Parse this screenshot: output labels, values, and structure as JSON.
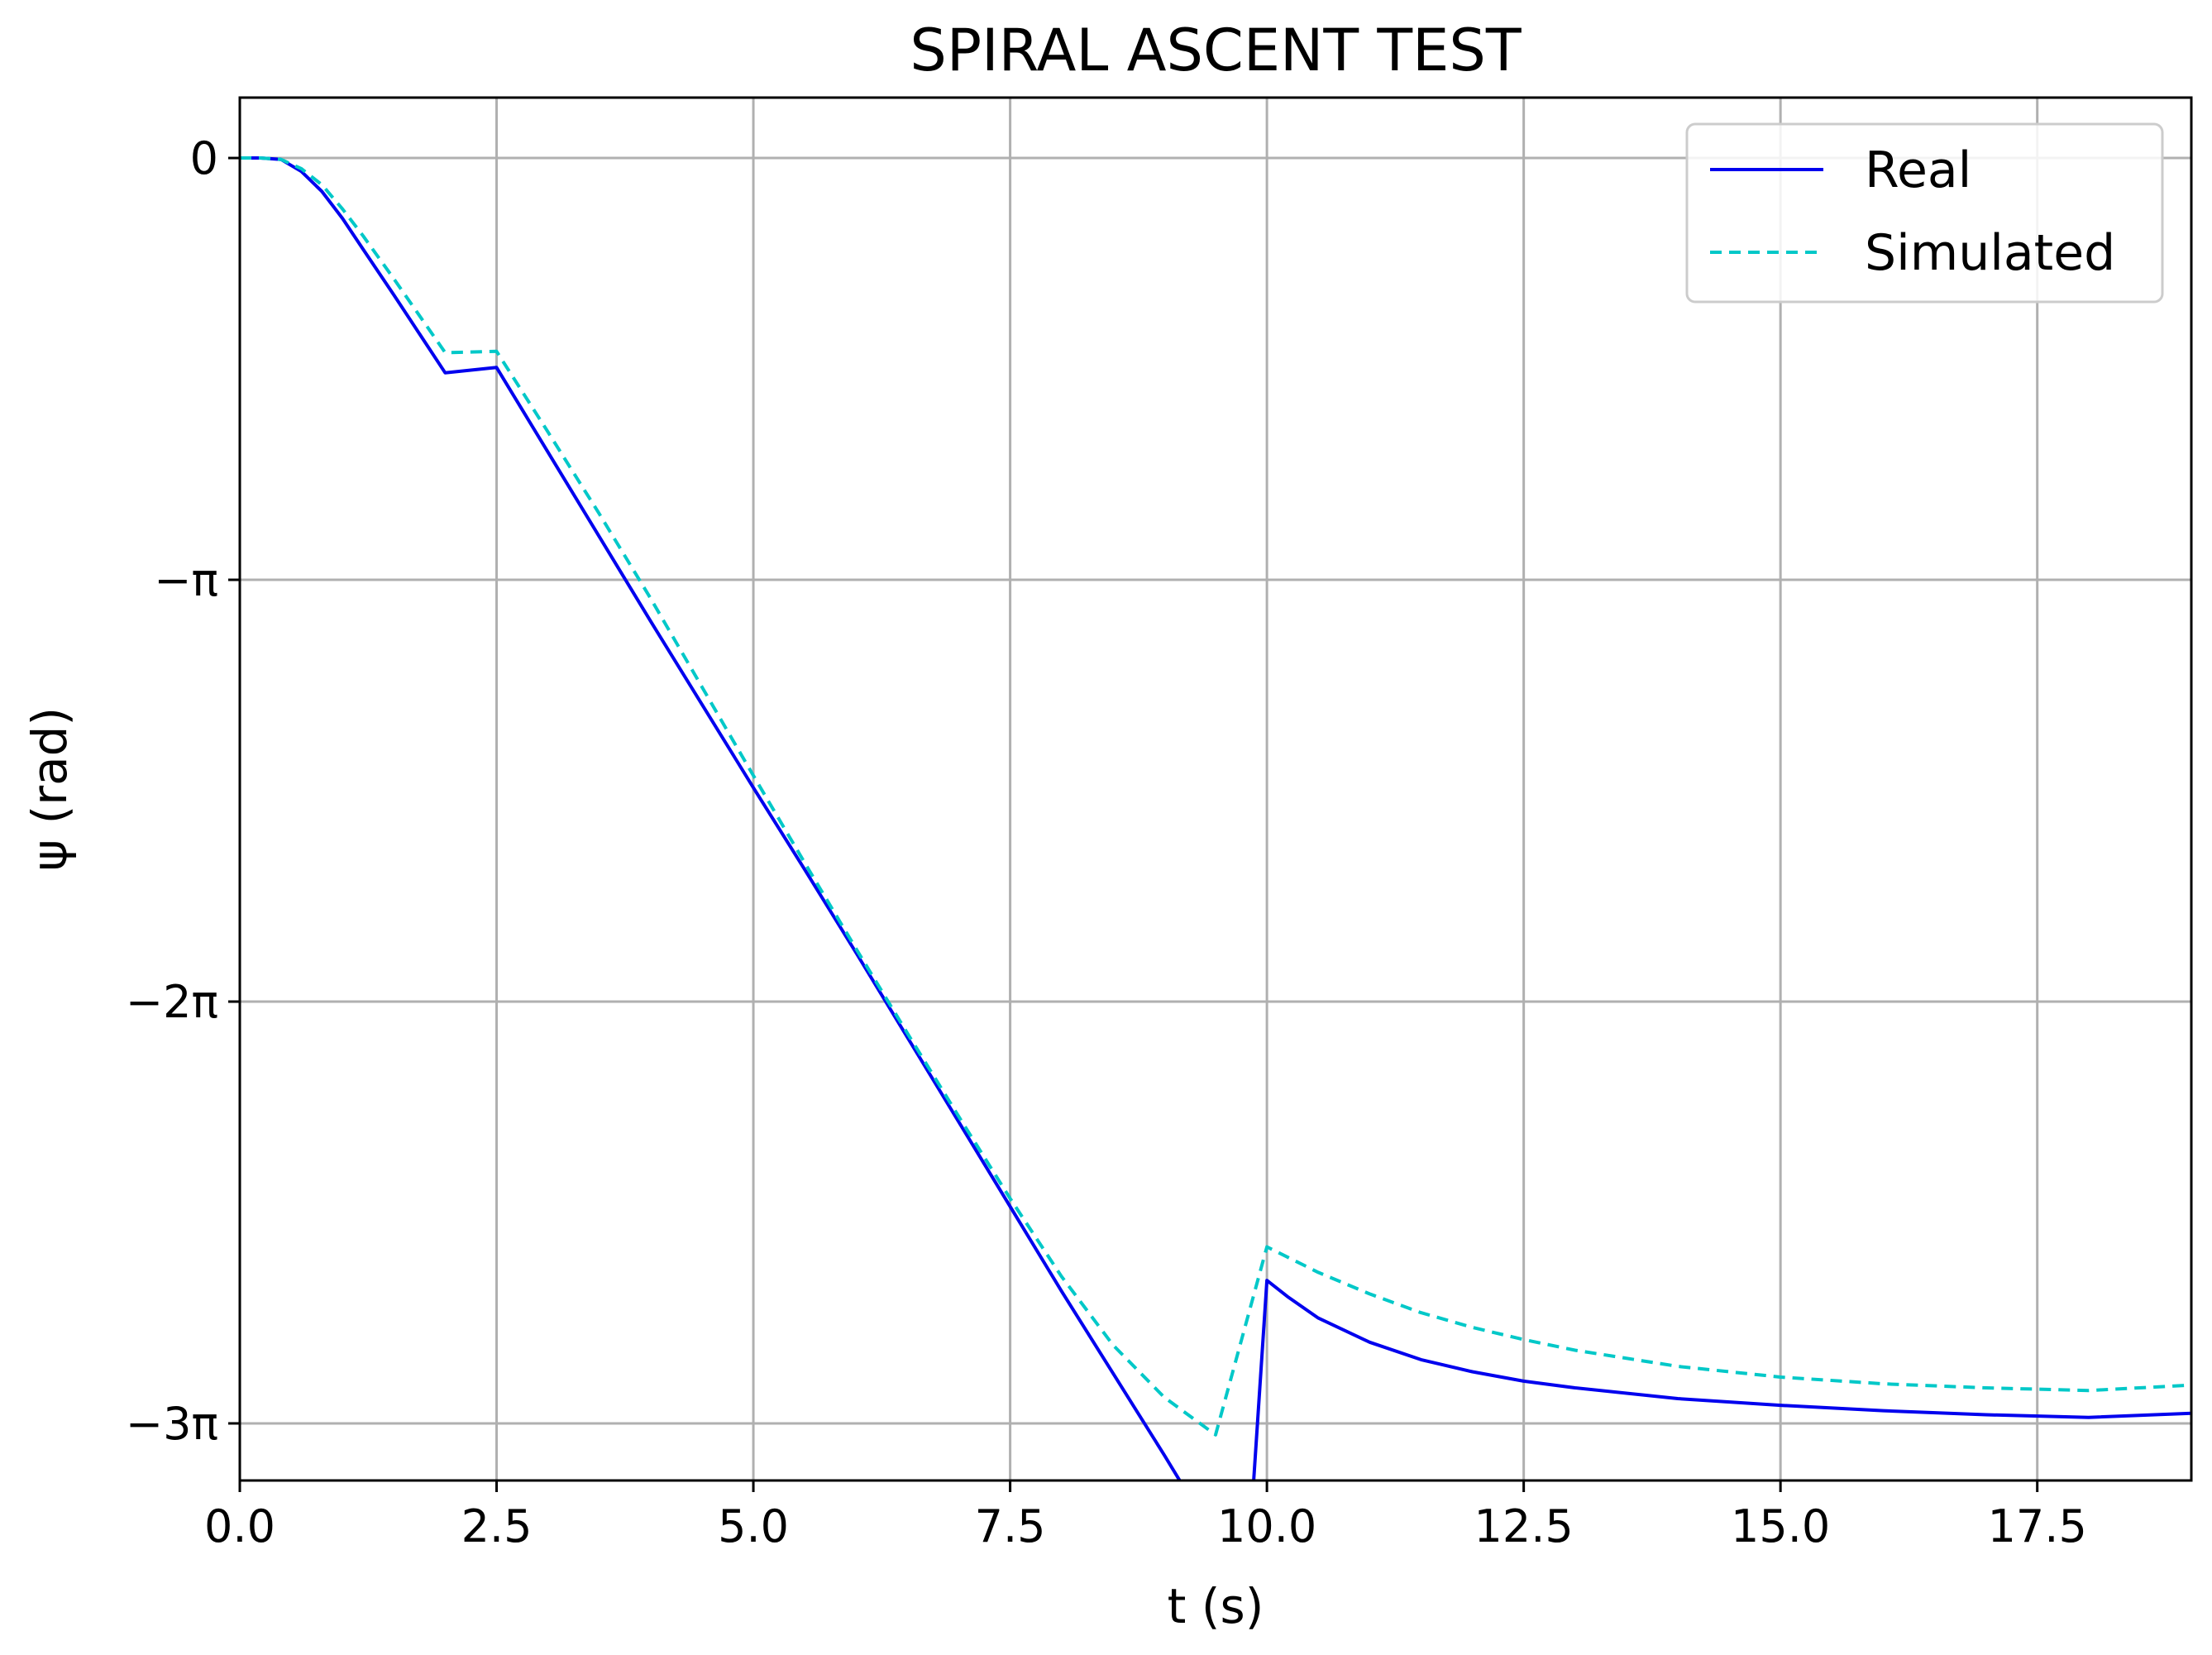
{
  "chart_data": {
    "type": "line",
    "title": "SPIRAL ASCENT TEST",
    "xlabel": "t (s)",
    "ylabel": "ψ (rad)",
    "xlim": [
      0,
      19
    ],
    "ylim": [
      -9.85,
      0.45
    ],
    "x_ticks": [
      0,
      2.5,
      5,
      7.5,
      10,
      12.5,
      15,
      17.5
    ],
    "x_tick_labels": [
      "0.0",
      "2.5",
      "5.0",
      "7.5",
      "10.0",
      "12.5",
      "15.0",
      "17.5"
    ],
    "y_ticks": [
      0,
      -3.14159,
      -6.28319,
      -9.42478
    ],
    "y_tick_labels": [
      "0",
      "−π",
      "−2π",
      "−3π"
    ],
    "grid": true,
    "legend_position": "top-right",
    "series": [
      {
        "name": "Real",
        "style": "solid",
        "color": "#0000ee",
        "x": [
          0,
          0.2,
          0.4,
          0.6,
          0.8,
          1.0,
          1.2,
          1.5,
          2.0,
          2.5,
          3.0,
          3.5,
          4.0,
          4.5,
          5.0,
          5.5,
          6.0,
          6.5,
          7.0,
          7.5,
          8.0,
          8.5,
          9.0,
          9.5,
          9.8,
          10.0,
          10.2,
          10.5,
          11.0,
          11.5,
          12.0,
          12.5,
          13.0,
          14.0,
          15.0,
          16.0,
          17.0,
          18.0,
          19.0
        ],
        "y": [
          0,
          0,
          -0.01,
          -0.1,
          -0.25,
          -0.45,
          -0.68,
          -1.02,
          -1.6,
          -1.56,
          -2.19,
          -2.82,
          -3.45,
          -4.07,
          -4.69,
          -5.3,
          -5.92,
          -6.55,
          -7.18,
          -7.81,
          -8.44,
          -9.05,
          -9.66,
          -10.29,
          -10.67,
          -8.36,
          -8.48,
          -8.64,
          -8.82,
          -8.95,
          -9.04,
          -9.11,
          -9.16,
          -9.24,
          -9.29,
          -9.33,
          -9.36,
          -9.38,
          -9.35
        ]
      },
      {
        "name": "Simulated",
        "style": "dashed",
        "color": "#00c8c8",
        "x": [
          0,
          0.2,
          0.4,
          0.6,
          0.8,
          1.0,
          1.2,
          1.5,
          2.0,
          2.5,
          3.0,
          3.5,
          4.0,
          4.5,
          5.0,
          5.5,
          6.0,
          6.5,
          7.0,
          7.5,
          8.0,
          8.5,
          9.0,
          9.5,
          10.0,
          10.5,
          11.0,
          11.5,
          12.0,
          12.5,
          13.0,
          14.0,
          15.0,
          16.0,
          17.0,
          18.0,
          19.0
        ],
        "y": [
          0,
          0,
          -0.01,
          -0.08,
          -0.2,
          -0.38,
          -0.58,
          -0.9,
          -1.45,
          -1.44,
          -2.04,
          -2.65,
          -3.28,
          -3.94,
          -4.6,
          -5.25,
          -5.89,
          -6.52,
          -7.14,
          -7.75,
          -8.33,
          -8.84,
          -9.23,
          -9.51,
          -8.11,
          -8.3,
          -8.46,
          -8.6,
          -8.71,
          -8.8,
          -8.88,
          -9.0,
          -9.08,
          -9.13,
          -9.16,
          -9.18,
          -9.14
        ]
      }
    ]
  }
}
